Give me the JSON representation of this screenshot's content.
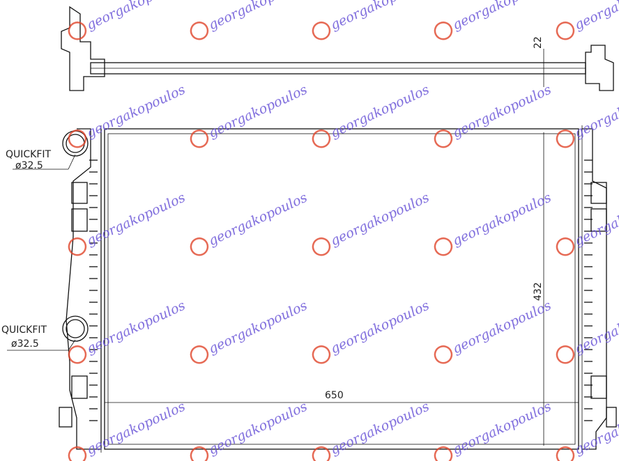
{
  "drawing": {
    "dimensions": {
      "tank_height": "22",
      "core_height": "432",
      "core_width": "650"
    },
    "callouts": [
      {
        "label": "QUICKFIT",
        "size": "ø32.5"
      },
      {
        "label": "QUICKFIT",
        "size": "ø32.5"
      }
    ]
  },
  "watermark": {
    "text": "georgakopoulos",
    "logo_color": "#e0452b",
    "text_color": "#6a55d8"
  }
}
